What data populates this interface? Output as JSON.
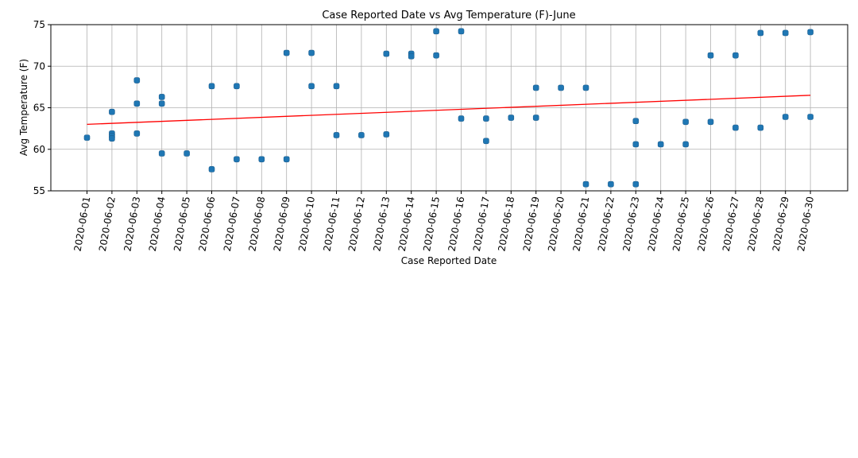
{
  "chart_data": {
    "type": "scatter",
    "title": "Case Reported Date vs Avg Temperature (F)-June",
    "xlabel": "Case Reported Date",
    "ylabel": "Avg Temperature (F)",
    "categories": [
      "2020-06-01",
      "2020-06-02",
      "2020-06-03",
      "2020-06-04",
      "2020-06-05",
      "2020-06-06",
      "2020-06-07",
      "2020-06-08",
      "2020-06-09",
      "2020-06-10",
      "2020-06-11",
      "2020-06-12",
      "2020-06-13",
      "2020-06-14",
      "2020-06-15",
      "2020-06-16",
      "2020-06-17",
      "2020-06-18",
      "2020-06-19",
      "2020-06-20",
      "2020-06-21",
      "2020-06-22",
      "2020-06-23",
      "2020-06-24",
      "2020-06-25",
      "2020-06-26",
      "2020-06-27",
      "2020-06-28",
      "2020-06-29",
      "2020-06-30"
    ],
    "ylim": [
      55,
      75
    ],
    "yticks": [
      55,
      60,
      65,
      70,
      75
    ],
    "grid": true,
    "points": [
      {
        "x": "2020-06-01",
        "y": 61.4
      },
      {
        "x": "2020-06-02",
        "y": 64.5
      },
      {
        "x": "2020-06-02",
        "y": 61.9
      },
      {
        "x": "2020-06-02",
        "y": 61.6
      },
      {
        "x": "2020-06-02",
        "y": 61.3
      },
      {
        "x": "2020-06-03",
        "y": 68.3
      },
      {
        "x": "2020-06-03",
        "y": 65.5
      },
      {
        "x": "2020-06-03",
        "y": 61.9
      },
      {
        "x": "2020-06-04",
        "y": 66.3
      },
      {
        "x": "2020-06-04",
        "y": 65.5
      },
      {
        "x": "2020-06-04",
        "y": 59.5
      },
      {
        "x": "2020-06-05",
        "y": 59.5
      },
      {
        "x": "2020-06-06",
        "y": 67.6
      },
      {
        "x": "2020-06-06",
        "y": 57.6
      },
      {
        "x": "2020-06-07",
        "y": 67.6
      },
      {
        "x": "2020-06-07",
        "y": 58.8
      },
      {
        "x": "2020-06-08",
        "y": 58.8
      },
      {
        "x": "2020-06-09",
        "y": 71.6
      },
      {
        "x": "2020-06-09",
        "y": 58.8
      },
      {
        "x": "2020-06-10",
        "y": 71.6
      },
      {
        "x": "2020-06-10",
        "y": 67.6
      },
      {
        "x": "2020-06-11",
        "y": 67.6
      },
      {
        "x": "2020-06-11",
        "y": 61.7
      },
      {
        "x": "2020-06-12",
        "y": 61.7
      },
      {
        "x": "2020-06-13",
        "y": 71.5
      },
      {
        "x": "2020-06-13",
        "y": 61.8
      },
      {
        "x": "2020-06-14",
        "y": 71.5
      },
      {
        "x": "2020-06-14",
        "y": 71.2
      },
      {
        "x": "2020-06-15",
        "y": 74.2
      },
      {
        "x": "2020-06-15",
        "y": 71.3
      },
      {
        "x": "2020-06-16",
        "y": 74.2
      },
      {
        "x": "2020-06-16",
        "y": 63.7
      },
      {
        "x": "2020-06-17",
        "y": 63.7
      },
      {
        "x": "2020-06-17",
        "y": 61.0
      },
      {
        "x": "2020-06-18",
        "y": 63.8
      },
      {
        "x": "2020-06-19",
        "y": 67.4
      },
      {
        "x": "2020-06-19",
        "y": 63.8
      },
      {
        "x": "2020-06-20",
        "y": 67.4
      },
      {
        "x": "2020-06-21",
        "y": 67.4
      },
      {
        "x": "2020-06-21",
        "y": 55.8
      },
      {
        "x": "2020-06-22",
        "y": 55.8
      },
      {
        "x": "2020-06-23",
        "y": 63.4
      },
      {
        "x": "2020-06-23",
        "y": 60.6
      },
      {
        "x": "2020-06-23",
        "y": 55.8
      },
      {
        "x": "2020-06-24",
        "y": 60.6
      },
      {
        "x": "2020-06-25",
        "y": 63.3
      },
      {
        "x": "2020-06-25",
        "y": 60.6
      },
      {
        "x": "2020-06-26",
        "y": 71.3
      },
      {
        "x": "2020-06-26",
        "y": 63.3
      },
      {
        "x": "2020-06-27",
        "y": 71.3
      },
      {
        "x": "2020-06-27",
        "y": 62.6
      },
      {
        "x": "2020-06-28",
        "y": 74.0
      },
      {
        "x": "2020-06-28",
        "y": 62.6
      },
      {
        "x": "2020-06-29",
        "y": 74.0
      },
      {
        "x": "2020-06-29",
        "y": 63.9
      },
      {
        "x": "2020-06-30",
        "y": 74.1
      },
      {
        "x": "2020-06-30",
        "y": 63.9
      }
    ],
    "trendline": {
      "x": [
        "2020-06-01",
        "2020-06-30"
      ],
      "y": [
        63.0,
        66.5
      ]
    },
    "colors": {
      "points": "#1f77b4",
      "trendline": "#ff0000"
    }
  }
}
